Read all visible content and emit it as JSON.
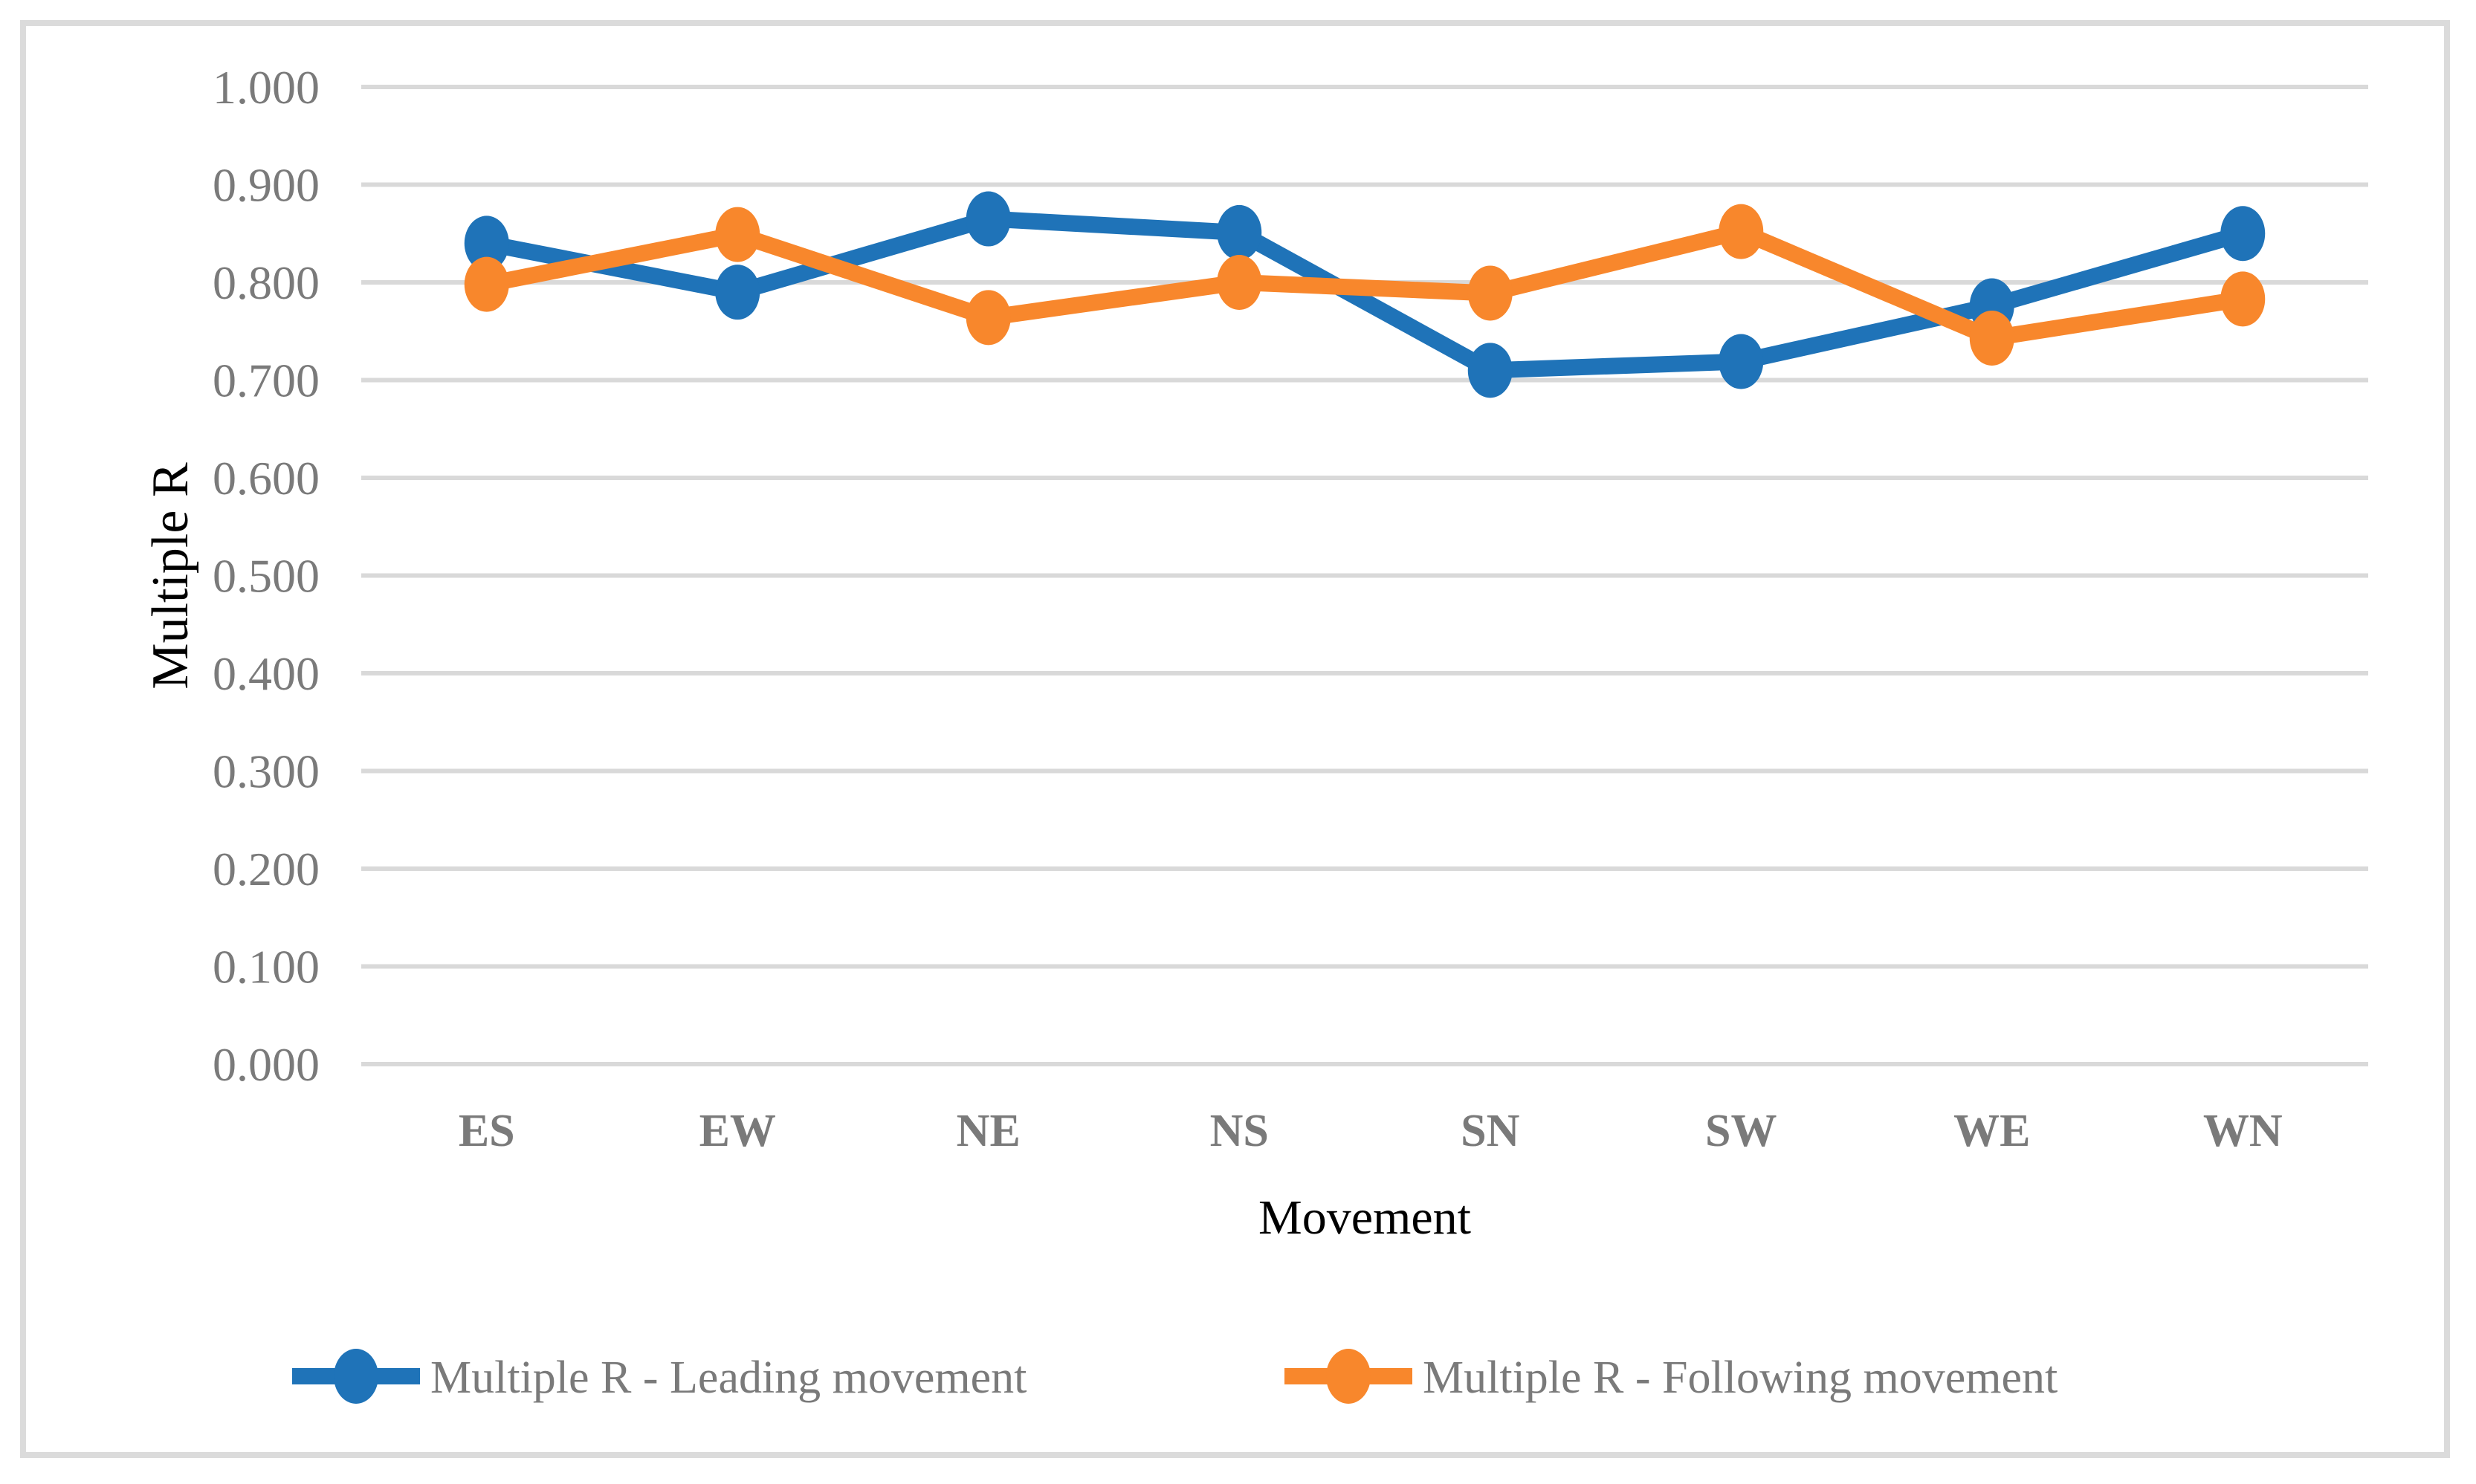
{
  "figure": {
    "background": "#ffffff",
    "border_color": "#dbdbdb"
  },
  "chart_data": {
    "type": "line",
    "title": "",
    "xlabel": "Movement",
    "ylabel": "Multiple R",
    "categories": [
      "ES",
      "EW",
      "NE",
      "NS",
      "SN",
      "SW",
      "WE",
      "WN"
    ],
    "series": [
      {
        "name": "Multiple R - Leading movement",
        "color": "#1f73b8",
        "values": [
          0.84,
          0.79,
          0.865,
          0.851,
          0.71,
          0.719,
          0.776,
          0.85
        ]
      },
      {
        "name": "Multiple R - Following movement",
        "color": "#f8872c",
        "values": [
          0.798,
          0.849,
          0.764,
          0.8,
          0.789,
          0.852,
          0.743,
          0.783
        ]
      }
    ],
    "ylim": [
      0.0,
      1.0
    ],
    "ytick_step": 0.1,
    "ytick_decimals": 3,
    "ytick_labels": [
      "0.000",
      "0.100",
      "0.200",
      "0.300",
      "0.400",
      "0.500",
      "0.600",
      "0.700",
      "0.800",
      "0.900",
      "1.000"
    ],
    "grid": "horizontal",
    "gridline_color": "#d9d9d9",
    "text_color": "#7a7a7a",
    "legend_position": "bottom"
  }
}
